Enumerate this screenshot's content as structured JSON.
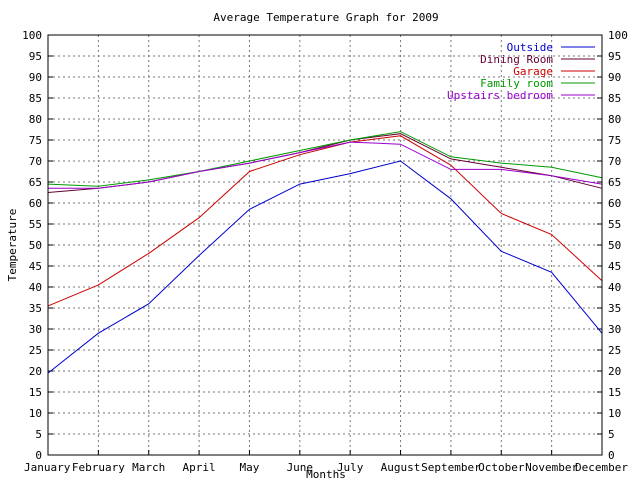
{
  "chart_data": {
    "type": "line",
    "title": "Average Temperature Graph for 2009",
    "xlabel": "Months",
    "ylabel": "Temperature",
    "categories": [
      "January",
      "February",
      "March",
      "April",
      "May",
      "June",
      "July",
      "August",
      "September",
      "October",
      "November",
      "December"
    ],
    "ylim": [
      0,
      100
    ],
    "yticks": [
      0,
      5,
      10,
      15,
      20,
      25,
      30,
      35,
      40,
      45,
      50,
      55,
      60,
      65,
      70,
      75,
      80,
      85,
      90,
      95,
      100
    ],
    "grid": true,
    "legend_position": "top-right",
    "series": [
      {
        "name": "Outside",
        "color": "#0000cc",
        "values": [
          19.5,
          29,
          36,
          47.5,
          58.5,
          64.5,
          67,
          70,
          61,
          48.5,
          43.5,
          29
        ]
      },
      {
        "name": "Dining Room",
        "color": "#660033",
        "values": [
          62.5,
          63.5,
          65,
          67.5,
          69.5,
          72,
          75,
          76.5,
          70.5,
          68.5,
          66.5,
          63.5
        ]
      },
      {
        "name": "Garage",
        "color": "#cc0000",
        "values": [
          35.5,
          40.5,
          48,
          56.5,
          67.5,
          71.5,
          74.5,
          76,
          69,
          57.5,
          52.5,
          41.5
        ]
      },
      {
        "name": "Family room",
        "color": "#009900",
        "values": [
          64.5,
          64,
          65.5,
          67.5,
          70,
          72.5,
          75,
          77,
          71,
          69.5,
          68.5,
          66
        ]
      },
      {
        "name": "Upstairs bedroom",
        "color": "#9900cc",
        "values": [
          63.5,
          63.5,
          65,
          67.5,
          69.5,
          72,
          74.5,
          74,
          68,
          68,
          66.5,
          64.5
        ]
      }
    ]
  }
}
